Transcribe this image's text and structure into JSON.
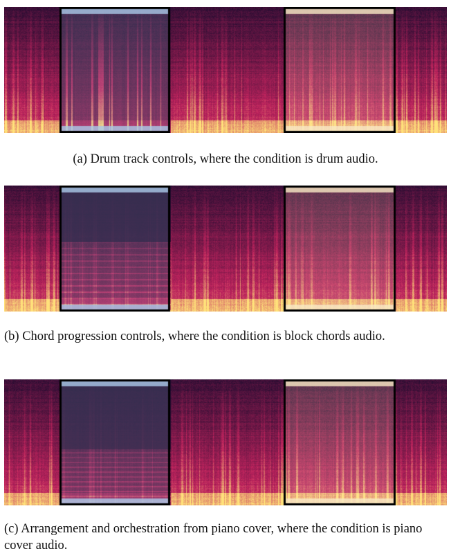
{
  "figure": {
    "panels": [
      {
        "id": "a",
        "caption": "(a)  Drum track controls, where the condition is drum audio.",
        "variant": "drum",
        "left_box_color": "#a9c8e6",
        "right_box_color": "#f8e8c4"
      },
      {
        "id": "b",
        "caption": "(b)  Chord progression controls, where the condition is block chords audio.",
        "variant": "chord",
        "left_box_color": "#a9c8e6",
        "right_box_color": "#f8e8c4"
      },
      {
        "id": "c",
        "caption": "(c)  Arrangement and orchestration from piano cover, where the condition is piano cover audio.",
        "variant": "piano",
        "left_box_color": "#a9c8e6",
        "right_box_color": "#f8e8c4"
      }
    ]
  },
  "colors": {
    "spectrogram_low": "#1a0b2e",
    "spectrogram_mid": "#c0245e",
    "spectrogram_high": "#ffe27a",
    "box_outline": "#000000"
  }
}
